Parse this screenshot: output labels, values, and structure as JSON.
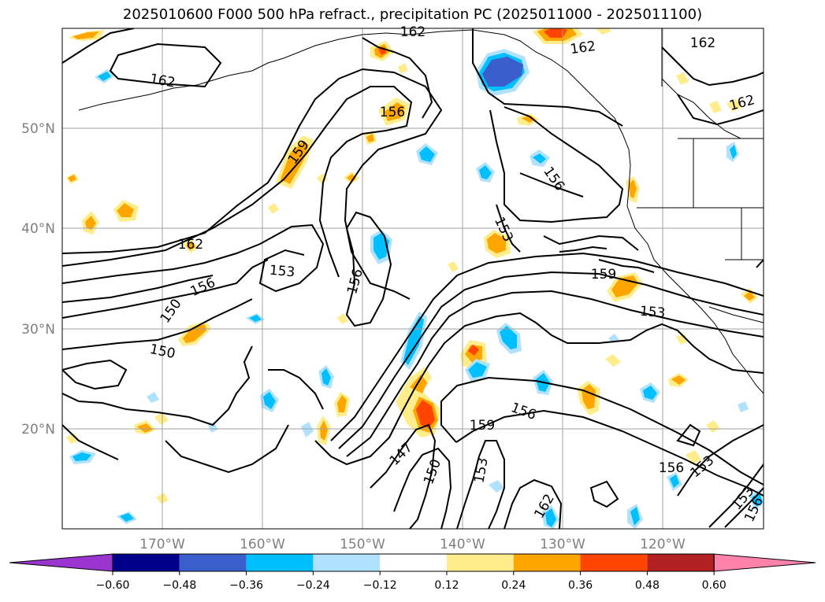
{
  "title": "2025010600 F000 500 hPa refract., precipitation PC (2025011000 - 2025011100)",
  "map": {
    "lon_labels": [
      "170°W",
      "160°W",
      "150°W",
      "140°W",
      "130°W",
      "120°W"
    ],
    "lat_labels": [
      "50°N",
      "40°N",
      "30°N",
      "20°N"
    ],
    "contour_labels": [
      "162",
      "162",
      "162",
      "162",
      "162",
      "162",
      "156",
      "159",
      "156",
      "153",
      "162",
      "153",
      "156",
      "159",
      "156",
      "150",
      "150",
      "153",
      "159",
      "156",
      "147",
      "150",
      "153",
      "162",
      "156",
      "153",
      "153",
      "156"
    ]
  },
  "colorbar": {
    "ticks": [
      "−0.60",
      "−0.48",
      "−0.36",
      "−0.24",
      "−0.12",
      "0.12",
      "0.24",
      "0.36",
      "0.48",
      "0.60"
    ],
    "colors": [
      "#9a35d0",
      "#00008b",
      "#3a5fcd",
      "#00bfff",
      "#b0e2ff",
      "#ffffff",
      "#ffec8b",
      "#ffa500",
      "#ff4500",
      "#b22222",
      "#ff82ab"
    ]
  }
}
